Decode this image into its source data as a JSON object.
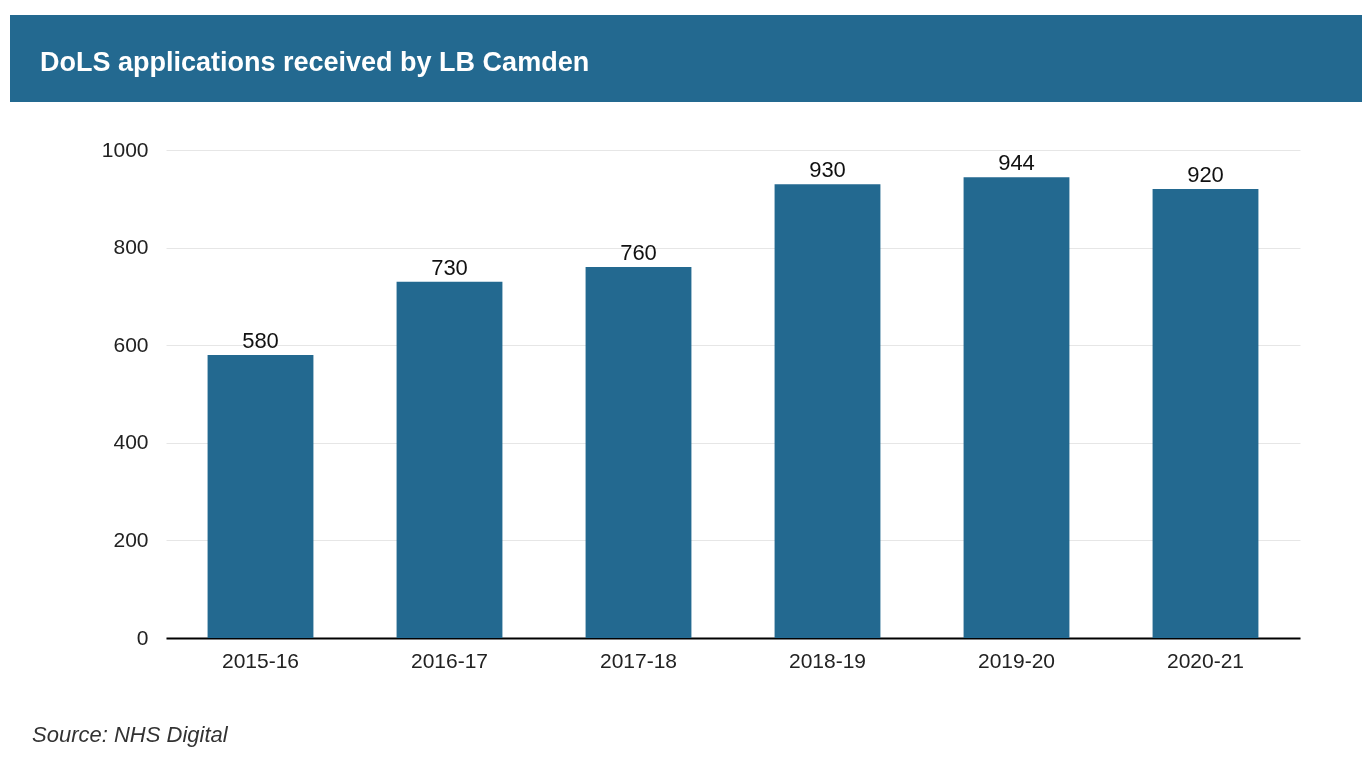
{
  "chart_data": {
    "type": "bar",
    "title": "DoLS applications received by LB Camden",
    "categories": [
      "2015-16",
      "2016-17",
      "2017-18",
      "2018-19",
      "2019-20",
      "2020-21"
    ],
    "values": [
      580,
      730,
      760,
      930,
      944,
      920
    ],
    "color": "#236990",
    "ylim": [
      0,
      1000
    ],
    "yticks": [
      0,
      200,
      400,
      600,
      800,
      1000
    ],
    "grid": "y",
    "data_labels": true,
    "annotations": [
      "Source: NHS Digital"
    ]
  }
}
